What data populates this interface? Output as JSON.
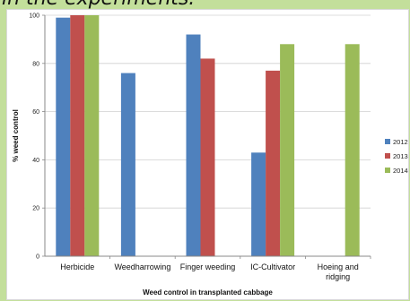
{
  "banner": {
    "text": "in the experiments:"
  },
  "chart_data": {
    "type": "bar",
    "title": "",
    "xlabel": "Weed control in transplanted cabbage",
    "ylabel": "% weed control",
    "ylim": [
      0,
      100
    ],
    "yticks": [
      0,
      20,
      40,
      60,
      80,
      100
    ],
    "grid": true,
    "legend": "right",
    "categories": [
      "Herbicide",
      "Weedharrowing",
      "Finger weeding",
      "IC-Cultivator",
      "Hoeing and\nridging"
    ],
    "series": [
      {
        "name": "2012",
        "color": "#4f81bd",
        "values": [
          99,
          76,
          92,
          43,
          null
        ]
      },
      {
        "name": "2013",
        "color": "#c0504d",
        "values": [
          100,
          null,
          82,
          77,
          null
        ]
      },
      {
        "name": "2014",
        "color": "#9bbb59",
        "values": [
          100,
          null,
          null,
          88,
          88
        ]
      }
    ]
  }
}
